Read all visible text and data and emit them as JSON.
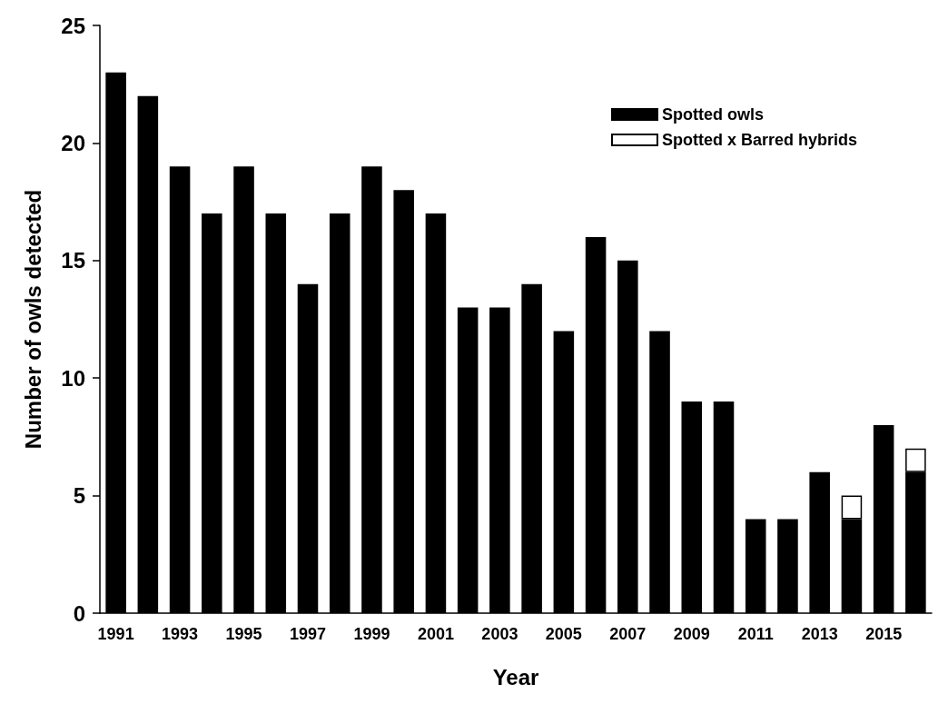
{
  "chart_data": {
    "type": "bar",
    "xlabel": "Year",
    "ylabel": "Number of owls detected",
    "categories": [
      "1991",
      null,
      "1993",
      null,
      "1995",
      null,
      "1997",
      null,
      "1999",
      null,
      "2001",
      null,
      "2003",
      null,
      "2005",
      null,
      "2007",
      null,
      "2009",
      null,
      "2011",
      null,
      "2013",
      null,
      "2015",
      null
    ],
    "stacked": true,
    "series": [
      {
        "name": "Spotted owls",
        "color": "#000000",
        "values": [
          23,
          22,
          19,
          17,
          19,
          17,
          14,
          17,
          19,
          18,
          17,
          13,
          13,
          14,
          12,
          16,
          15,
          12,
          9,
          9,
          4,
          4,
          6,
          4,
          8,
          6
        ]
      },
      {
        "name": "Spotted x Barred hybrids",
        "color": "#ffffff",
        "values": [
          null,
          null,
          null,
          null,
          null,
          null,
          null,
          null,
          null,
          null,
          null,
          null,
          null,
          null,
          null,
          null,
          null,
          null,
          null,
          null,
          null,
          null,
          null,
          1,
          null,
          1
        ]
      }
    ],
    "ylim": [
      0,
      25
    ],
    "yticks": [
      0,
      5,
      10,
      15,
      20,
      25
    ],
    "grid": false,
    "legend": "top right"
  }
}
